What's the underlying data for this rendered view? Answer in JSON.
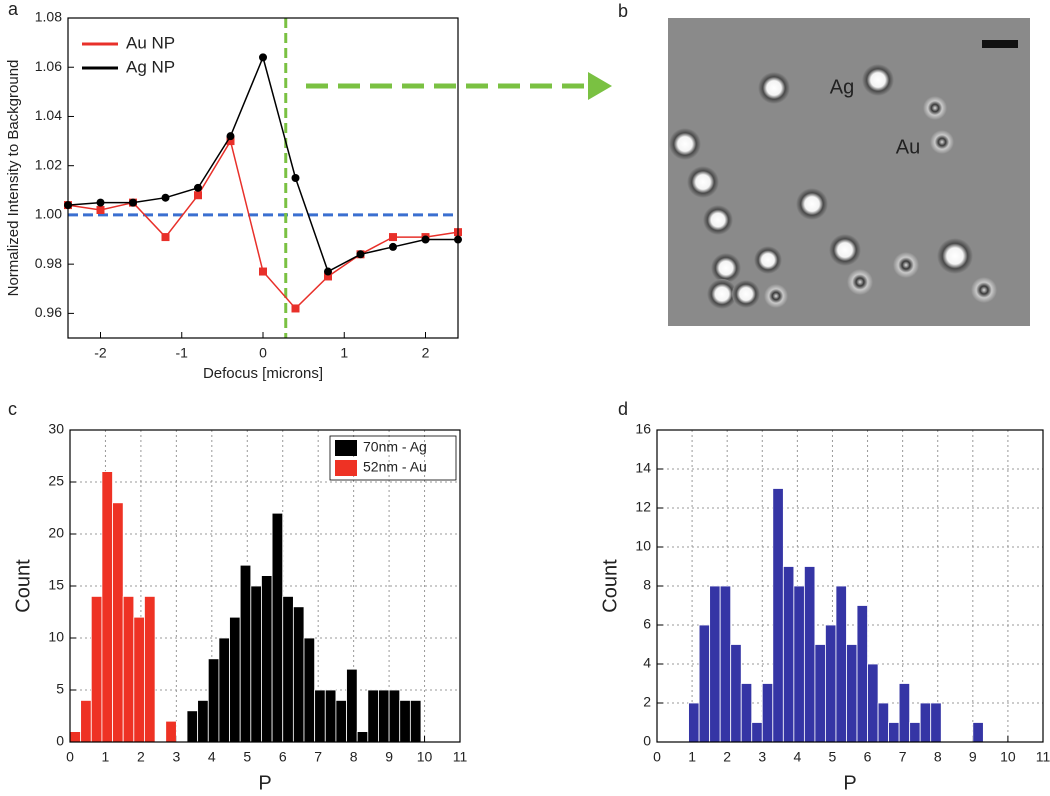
{
  "chart_data": [
    {
      "type": "line",
      "label": "a",
      "x_label": "Defocus [microns]",
      "y_label": "Normalized Intensity to Background",
      "xlim": [
        -2.4,
        2.4
      ],
      "xticks": [
        -2,
        -1,
        0,
        1,
        2
      ],
      "ylim": [
        0.95,
        1.08
      ],
      "yticks": [
        0.96,
        0.98,
        {
          "value": 1,
          "label": "1.00"
        },
        1.02,
        1.04,
        1.06,
        1.08
      ],
      "x": [
        -2.4,
        -2,
        -1.6,
        -1.2,
        -0.8,
        -0.4,
        0,
        0.4,
        0.8,
        1.2,
        1.6,
        2,
        2.4
      ],
      "series": [
        {
          "name": "Au NP",
          "color": "#e8302a",
          "marker": "square",
          "values": [
            1.004,
            1.002,
            1.005,
            0.991,
            1.008,
            1.03,
            0.977,
            0.962,
            0.975,
            0.984,
            0.991,
            0.991,
            0.993
          ]
        },
        {
          "name": "Ag NP",
          "color": "#000000",
          "marker": "circle",
          "values": [
            1.004,
            1.005,
            1.005,
            1.007,
            1.011,
            1.032,
            1.064,
            1.015,
            0.977,
            0.984,
            0.987,
            0.99,
            0.99
          ]
        }
      ],
      "reference_lines": [
        {
          "axis": "y",
          "value": 1,
          "color": "#3a6fd0"
        },
        {
          "axis": "x",
          "value": 0.28,
          "color": "#7ac142"
        }
      ],
      "legend": "upper-left",
      "grid": false
    },
    {
      "type": "image",
      "label": "b",
      "annotations": [
        "Ag",
        "Au"
      ]
    },
    {
      "type": "histogram",
      "label": "c",
      "x_label": "P",
      "y_label": "Count",
      "xlim": [
        0,
        11
      ],
      "xticks": [
        0,
        1,
        2,
        3,
        4,
        5,
        6,
        7,
        8,
        9,
        10,
        11
      ],
      "ylim": [
        0,
        30
      ],
      "yticks": [
        0,
        5,
        10,
        15,
        20,
        25,
        30
      ],
      "grid": true,
      "legend": "upper-right",
      "series": [
        {
          "name": "70nm - Ag",
          "color": "#000000",
          "bins": [
            3.3,
            3.6,
            3.9,
            4.2,
            4.5,
            4.8,
            5.1,
            5.4,
            5.7,
            6.0,
            6.3,
            6.6,
            6.9,
            7.2,
            7.5,
            7.8,
            8.1,
            8.4,
            8.7,
            9.0,
            9.3,
            9.6,
            9.9
          ],
          "values": [
            3,
            4,
            8,
            10,
            12,
            17,
            15,
            16,
            22,
            14,
            13,
            10,
            5,
            5,
            4,
            7,
            1,
            5,
            5,
            5,
            4,
            4
          ]
        },
        {
          "name": "52nm - Au",
          "color": "#ee3224",
          "bins": [
            0,
            0.3,
            0.6,
            0.9,
            1.2,
            1.5,
            1.8,
            2.1,
            2.4,
            2.7,
            3.0
          ],
          "values": [
            1,
            4,
            14,
            26,
            23,
            14,
            12,
            14,
            0,
            2
          ]
        }
      ]
    },
    {
      "type": "histogram",
      "label": "d",
      "x_label": "P",
      "y_label": "Count",
      "xlim": [
        0,
        11
      ],
      "xticks": [
        0,
        1,
        2,
        3,
        4,
        5,
        6,
        7,
        8,
        9,
        10,
        11
      ],
      "ylim": [
        0,
        16
      ],
      "yticks": [
        0,
        2,
        4,
        6,
        8,
        10,
        12,
        14,
        16
      ],
      "grid": true,
      "series": [
        {
          "color": "#3535a5",
          "bins": [
            0.9,
            1.2,
            1.5,
            1.8,
            2.1,
            2.4,
            2.7,
            3.0,
            3.3,
            3.6,
            3.9,
            4.2,
            4.5,
            4.8,
            5.1,
            5.4,
            5.7,
            6.0,
            6.3,
            6.6,
            6.9,
            7.2,
            7.5,
            7.8,
            8.1,
            8.4,
            8.7,
            9.0,
            9.3
          ],
          "values": [
            2,
            6,
            8,
            8,
            5,
            3,
            1,
            3,
            13,
            9,
            8,
            9,
            5,
            6,
            8,
            5,
            7,
            4,
            2,
            1,
            3,
            1,
            2,
            2,
            0,
            0,
            0,
            1
          ]
        }
      ]
    }
  ]
}
